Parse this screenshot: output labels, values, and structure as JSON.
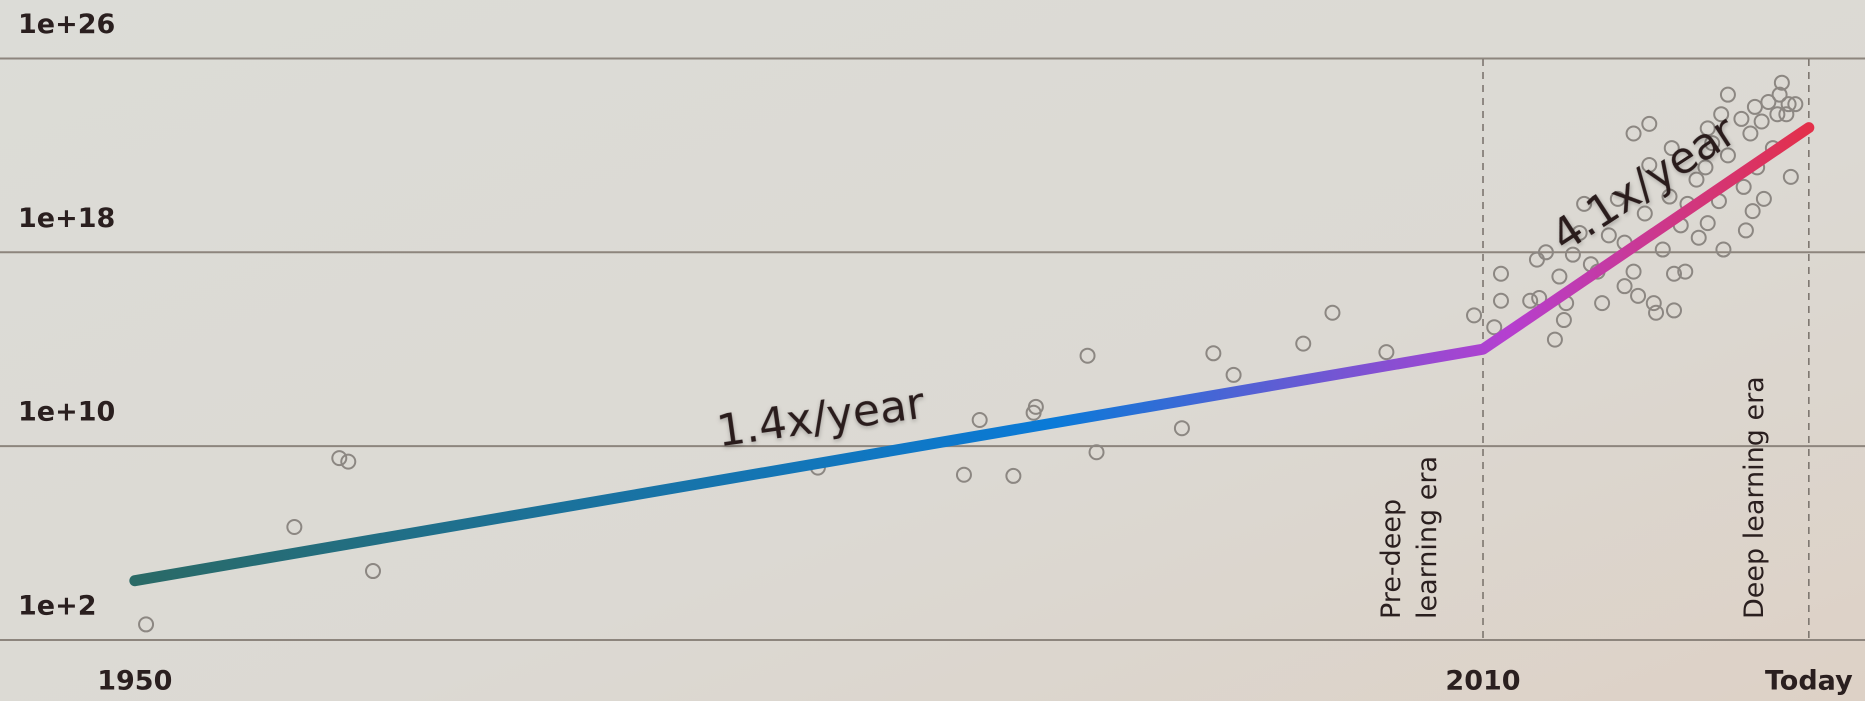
{
  "chart_data": {
    "type": "scatter",
    "ylog": true,
    "ylim": [
      100.0,
      1e+28
    ],
    "yticks": [
      {
        "value": 100.0,
        "label": "1e+2"
      },
      {
        "value": 10000000000.0,
        "label": "1e+10"
      },
      {
        "value": 1e+18,
        "label": "1e+18"
      },
      {
        "value": 1e+26,
        "label": "1e+26"
      }
    ],
    "xlim": [
      1944,
      2027
    ],
    "xticks": [
      1950,
      2010,
      {
        "value": 2024.5,
        "label": "Today"
      }
    ],
    "grid": true,
    "annotations": [
      "1.4x/year",
      "4.1x/year"
    ],
    "era_labels": [
      [
        "Pre-deep",
        "learning era"
      ],
      [
        "Deep learning era"
      ]
    ],
    "era_boundaries": [
      2010,
      2024.5
    ],
    "trend": {
      "x": [
        1950,
        2010,
        2024.5
      ],
      "values": [
        28000.0,
        100000000000000.0,
        1.4e+23
      ],
      "colors": [
        "#2a6a66",
        "#0a7ad8",
        "#b53fd0",
        "#e3304a"
      ]
    },
    "points": {
      "color": "#8c8782",
      "x": [
        1950.5,
        1957.1,
        1959.1,
        1959.5,
        1960.6,
        1980.4,
        1986.9,
        1987.6,
        1989.1,
        1990.0,
        1990.1,
        1992.4,
        1992.8,
        1996.6,
        1998.0,
        1998.9,
        2002.0,
        2003.3,
        2005.7,
        2009.6,
        2010.5,
        2010.8,
        2010.8,
        2012.4,
        2012.8,
        2012.5,
        2012.1,
        2013.2,
        2013.7,
        2013.6,
        2013.4,
        2014.0,
        2014.3,
        2014.5,
        2015.1,
        2015.3,
        2016.0,
        2016.3,
        2016.7,
        2017.4,
        2016.7,
        2016.9,
        2017.2,
        2017.4,
        2017.6,
        2017.7,
        2018.0,
        2018.3,
        2018.4,
        2018.5,
        2018.8,
        2019.0,
        2019.1,
        2019.5,
        2019.6,
        2019.9,
        2020.0,
        2020.2,
        2020.5,
        2020.7,
        2020.9,
        2021.5,
        2021.6,
        2021.7,
        2021.9,
        2022.0,
        2022.1,
        2022.2,
        2022.4,
        2022.5,
        2022.7,
        2022.9,
        2023.1,
        2023.2,
        2023.3,
        2023.5,
        2023.6,
        2023.7,
        2023.9,
        2014.8,
        2015.6,
        2016.3,
        2018.5,
        2020.0,
        2020.6,
        2020.9
      ],
      "values": [
        440.0,
        4600000.0,
        3200000000.0,
        2300000000.0,
        70000.0,
        1300000000.0,
        660000000.0,
        120000000000.0,
        590000000.0,
        240000000000.0,
        420000000000.0,
        54000000000000.0,
        5600000000.0,
        55000000000.0,
        68000000000000.0,
        8700000000000.0,
        170000000000000.0,
        3200000000000000.0,
        76000000000000.0,
        2500000000000000.0,
        810000000000000.0,
        1.3e+17,
        1e+16,
        5e+17,
        1e+18,
        1.3e+16,
        1e+16,
        250000000000000.0,
        8000000000000000.0,
        1600000000000000.0,
        1e+17,
        8e+17,
        6.3e+18,
        1e+20,
        1.6e+17,
        8000000000000000.0,
        1.6e+20,
        4e+16,
        8e+22,
        2e+23,
        1.6e+17,
        1.6e+16,
        4e+19,
        4e+21,
        8000000000000000.0,
        3200000000000000.0,
        1.3e+18,
        2e+20,
        2e+22,
        4000000000000000.0,
        1.3e+19,
        1.6e+17,
        1e+20,
        1e+21,
        4e+18,
        3.2e+21,
        1.6e+19,
        3.2e+22,
        1.3e+20,
        1.3e+18,
        1e+22,
        3.2e+23,
        5e+20,
        8e+18,
        8e+22,
        5e+19,
        1e+24,
        3.2e+21,
        2.5e+23,
        1.6e+20,
        1.6e+24,
        2e+22,
        5e+23,
        3.2e+24,
        1e+25,
        5e+23,
        1.3e+24,
        1.3e+21,
        1.3e+24,
        3.2e+17,
        5e+18,
        2.5e+18,
        1.3e+17,
        1.3e+23,
        5e+23,
        3.2e+24
      ]
    }
  }
}
